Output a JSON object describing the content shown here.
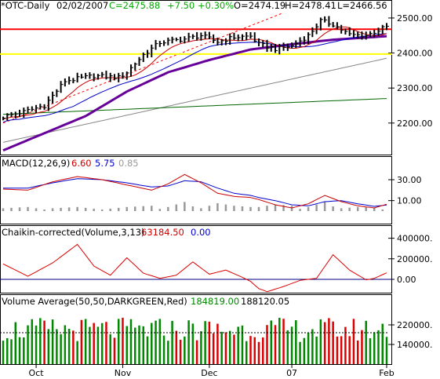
{
  "header": {
    "symbol": "*OTC-Daily",
    "date": "02/02/2007",
    "close": "C=2475.88",
    "change": "+7.50",
    "pct": "+0.30%",
    "open": "O=2474.19",
    "high": "H=2478.41",
    "low": "L=2466.56"
  },
  "macd": {
    "label": "MACD(12,26,9)",
    "v1": "6.60",
    "v2": "5.75",
    "v3": "0.85"
  },
  "chaikin": {
    "label": "Chaikin-corrected(Volume,3,13)",
    "v1": "63184.50",
    "v2": "0.00"
  },
  "volume": {
    "label": "Volume Average(50,50,DARKGREEN,Red)",
    "v1": "184819.00",
    "v2": "188120.05"
  },
  "colors": {
    "price": "#000000",
    "sma_fast": "#cc0000",
    "sma_mid": "#0000cc",
    "sma_purple": "#660099",
    "sma_gray": "#888888",
    "sma_green": "#006600",
    "resistance": "#ff0000",
    "support": "#ffff00",
    "trend": "#ff0000",
    "macd": "#cc0000",
    "signal": "#0000cc",
    "hist": "#999999",
    "vol_up": "#008800",
    "vol_down": "#dd0000"
  },
  "chart_data": [
    {
      "type": "line",
      "title": "*OTC-Daily 02/02/2007",
      "ylim": [
        2110,
        2520
      ],
      "yticks": [
        "2500.00",
        "2400.00",
        "2300.00",
        "2200.00"
      ],
      "ytick_values": [
        2500,
        2400,
        2300,
        2200
      ],
      "xticks": [
        "Oct",
        "Nov",
        "Dec",
        "07",
        "Feb"
      ],
      "xtick_index": [
        8,
        29,
        50,
        70,
        93
      ],
      "n_bars": 94,
      "price_anchors": [
        [
          0,
          2218
        ],
        [
          5,
          2232
        ],
        [
          10,
          2250
        ],
        [
          15,
          2320
        ],
        [
          22,
          2335
        ],
        [
          28,
          2330
        ],
        [
          30,
          2345
        ],
        [
          34,
          2395
        ],
        [
          38,
          2430
        ],
        [
          44,
          2440
        ],
        [
          48,
          2450
        ],
        [
          52,
          2432
        ],
        [
          56,
          2445
        ],
        [
          60,
          2448
        ],
        [
          62,
          2425
        ],
        [
          66,
          2412
        ],
        [
          70,
          2420
        ],
        [
          74,
          2450
        ],
        [
          77,
          2492
        ],
        [
          80,
          2482
        ],
        [
          84,
          2452
        ],
        [
          88,
          2450
        ],
        [
          93,
          2475
        ]
      ],
      "levels": {
        "resistance": 2468,
        "support": 2397
      },
      "sma_gray": [
        [
          0,
          2145
        ],
        [
          93,
          2385
        ]
      ],
      "sma_green": [
        [
          0,
          2225
        ],
        [
          93,
          2270
        ]
      ],
      "sma_purple": [
        [
          0,
          2122
        ],
        [
          20,
          2220
        ],
        [
          30,
          2290
        ],
        [
          40,
          2345
        ],
        [
          50,
          2380
        ],
        [
          60,
          2410
        ],
        [
          70,
          2425
        ],
        [
          80,
          2438
        ],
        [
          93,
          2448
        ]
      ],
      "trendline": [
        [
          0,
          2200
        ],
        [
          68,
          2515
        ]
      ]
    },
    {
      "type": "line",
      "name": "MACD(12,26,9)",
      "ylim": [
        -12,
        42
      ],
      "yticks": [
        "30.00",
        "10.00"
      ],
      "ytick_values": [
        30,
        10
      ],
      "macd": [
        [
          0,
          21
        ],
        [
          6,
          20
        ],
        [
          12,
          28
        ],
        [
          18,
          33
        ],
        [
          24,
          30
        ],
        [
          30,
          25
        ],
        [
          36,
          20
        ],
        [
          40,
          26
        ],
        [
          44,
          35
        ],
        [
          48,
          27
        ],
        [
          52,
          17
        ],
        [
          56,
          14
        ],
        [
          60,
          13
        ],
        [
          62,
          11
        ],
        [
          66,
          6
        ],
        [
          70,
          3
        ],
        [
          74,
          7
        ],
        [
          78,
          15
        ],
        [
          82,
          9
        ],
        [
          86,
          5
        ],
        [
          90,
          3
        ],
        [
          93,
          6.6
        ]
      ],
      "signal": [
        [
          0,
          22
        ],
        [
          6,
          22
        ],
        [
          12,
          27
        ],
        [
          18,
          31
        ],
        [
          24,
          30
        ],
        [
          30,
          27
        ],
        [
          36,
          23
        ],
        [
          40,
          24
        ],
        [
          44,
          29
        ],
        [
          48,
          28
        ],
        [
          52,
          22
        ],
        [
          56,
          17
        ],
        [
          60,
          15
        ],
        [
          62,
          13
        ],
        [
          66,
          10
        ],
        [
          70,
          6
        ],
        [
          74,
          5
        ],
        [
          78,
          9
        ],
        [
          82,
          10
        ],
        [
          86,
          7
        ],
        [
          90,
          4.5
        ],
        [
          93,
          5.75
        ]
      ]
    },
    {
      "type": "line",
      "name": "Chaikin-corrected(Volume,3,13)",
      "ylim": [
        -130000,
        420000
      ],
      "yticks": [
        "400000.",
        "200000.",
        "0.00"
      ],
      "ytick_values": [
        400000,
        200000,
        0
      ],
      "values": [
        [
          0,
          150000
        ],
        [
          6,
          30000
        ],
        [
          12,
          160000
        ],
        [
          18,
          340000
        ],
        [
          22,
          130000
        ],
        [
          26,
          40000
        ],
        [
          30,
          210000
        ],
        [
          34,
          60000
        ],
        [
          38,
          10000
        ],
        [
          42,
          40000
        ],
        [
          46,
          170000
        ],
        [
          50,
          50000
        ],
        [
          54,
          90000
        ],
        [
          58,
          20000
        ],
        [
          60,
          -20000
        ],
        [
          62,
          -90000
        ],
        [
          64,
          -120000
        ],
        [
          68,
          -70000
        ],
        [
          72,
          -10000
        ],
        [
          76,
          10000
        ],
        [
          80,
          240000
        ],
        [
          84,
          90000
        ],
        [
          88,
          -5000
        ],
        [
          90,
          10000
        ],
        [
          93,
          63184
        ]
      ]
    },
    {
      "type": "bar",
      "name": "Volume Average(50,50,DARKGREEN,Red)",
      "ylim": [
        60000,
        300000
      ],
      "yticks": [
        "220000.",
        "140000."
      ],
      "ytick_values": [
        220000,
        140000
      ],
      "avg_level": 188120
    }
  ]
}
